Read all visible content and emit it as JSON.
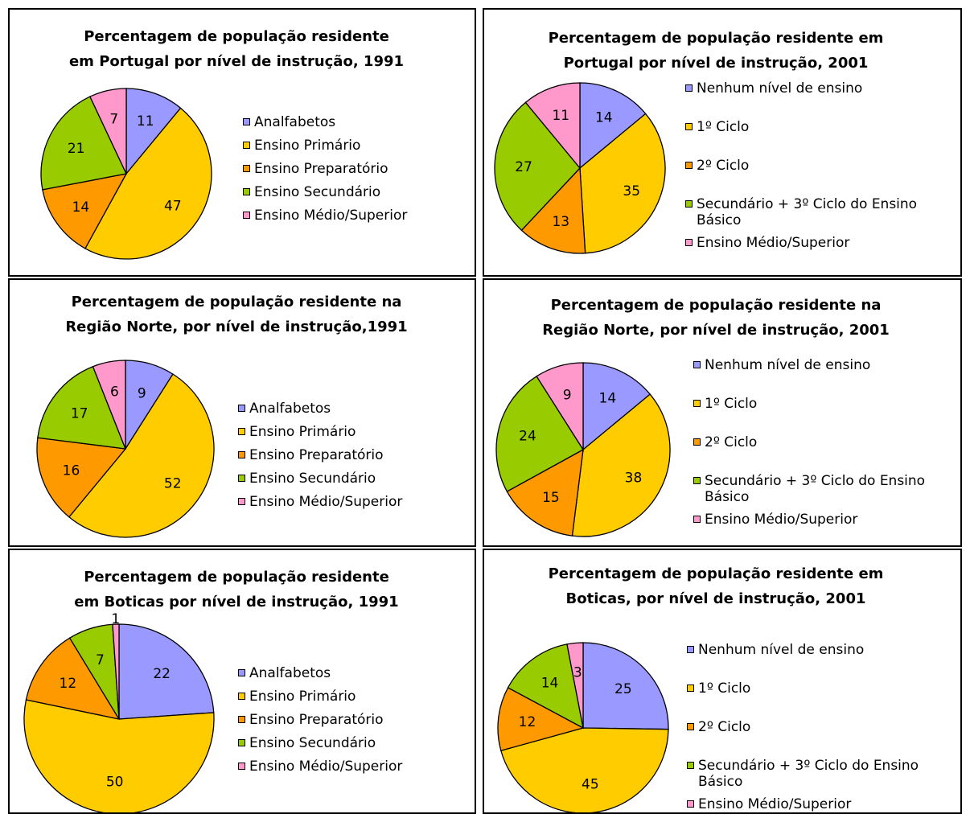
{
  "chart_data": [
    {
      "type": "pie",
      "title": [
        "Percentagem de população residente",
        "em Portugal por nível de instrução, 1991"
      ],
      "categories": [
        "Analfabetos",
        "Ensino Primário",
        "Ensino Preparatório",
        "Ensino Secundário",
        "Ensino Médio/Superior"
      ],
      "values": [
        11,
        47,
        14,
        21,
        7
      ],
      "colors": [
        "#9999ff",
        "#ffcc00",
        "#ff9900",
        "#99cc00",
        "#ff99cc"
      ],
      "legend": "right"
    },
    {
      "type": "pie",
      "title": [
        "Percentagem de população residente em",
        "Portugal por nível de instrução, 2001"
      ],
      "categories": [
        "Nenhum nível de ensino",
        "1º Ciclo",
        "2º Ciclo",
        "Secundário + 3º Ciclo do Ensino Básico",
        "Ensino Médio/Superior"
      ],
      "values": [
        14,
        35,
        13,
        27,
        11
      ],
      "colors": [
        "#9999ff",
        "#ffcc00",
        "#ff9900",
        "#99cc00",
        "#ff99cc"
      ],
      "legend": "right"
    },
    {
      "type": "pie",
      "title": [
        "Percentagem de população residente na",
        "Região Norte, por nível de instrução,1991"
      ],
      "categories": [
        "Analfabetos",
        "Ensino Primário",
        "Ensino Preparatório",
        "Ensino Secundário",
        "Ensino Médio/Superior"
      ],
      "values": [
        9,
        52,
        16,
        17,
        6
      ],
      "colors": [
        "#9999ff",
        "#ffcc00",
        "#ff9900",
        "#99cc00",
        "#ff99cc"
      ],
      "legend": "right"
    },
    {
      "type": "pie",
      "title": [
        "Percentagem de população residente na",
        "Região Norte, por nível de instrução, 2001"
      ],
      "categories": [
        "Nenhum nível de ensino",
        "1º Ciclo",
        "2º Ciclo",
        "Secundário + 3º Ciclo do Ensino Básico",
        "Ensino Médio/Superior"
      ],
      "values": [
        14,
        38,
        15,
        24,
        9
      ],
      "colors": [
        "#9999ff",
        "#ffcc00",
        "#ff9900",
        "#99cc00",
        "#ff99cc"
      ],
      "legend": "right"
    },
    {
      "type": "pie",
      "title": [
        "Percentagem de população residente",
        "em Boticas por nível de instrução, 1991"
      ],
      "categories": [
        "Analfabetos",
        "Ensino Primário",
        "Ensino Preparatório",
        "Ensino Secundário",
        "Ensino Médio/Superior"
      ],
      "values": [
        22,
        50,
        12,
        7,
        1
      ],
      "colors": [
        "#9999ff",
        "#ffcc00",
        "#ff9900",
        "#99cc00",
        "#ff99cc"
      ],
      "legend": "right"
    },
    {
      "type": "pie",
      "title": [
        "Percentagem de população residente em",
        "Boticas, por nível de instrução, 2001"
      ],
      "categories": [
        "Nenhum nível de ensino",
        "1º Ciclo",
        "2º Ciclo",
        "Secundário + 3º Ciclo do Ensino Básico",
        "Ensino Médio/Superior"
      ],
      "values": [
        25,
        45,
        12,
        14,
        3
      ],
      "colors": [
        "#9999ff",
        "#ffcc00",
        "#ff9900",
        "#99cc00",
        "#ff99cc"
      ],
      "legend": "right"
    }
  ]
}
